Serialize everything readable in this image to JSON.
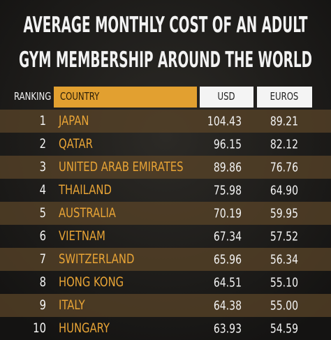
{
  "header": {
    "title_lines": [
      "AVERAGE MONTHLY COST OF AN ADULT",
      "GYM MEMBERSHIP AROUND THE WORLD"
    ]
  },
  "table": {
    "columns": [
      "RANKING",
      "COUNTRY",
      "USD",
      "EUROS"
    ],
    "rows": [
      [
        "1",
        "JAPAN",
        "104.43",
        "89.21"
      ],
      [
        "2",
        "QATAR",
        "96.15",
        "82.12"
      ],
      [
        "3",
        "UNITED ARAB EMIRATES",
        "89.86",
        "76.76"
      ],
      [
        "4",
        "THAILAND",
        "75.98",
        "64.90"
      ],
      [
        "5",
        "AUSTRALIA",
        "70.19",
        "59.95"
      ],
      [
        "6",
        "VIETNAM",
        "67.34",
        "57.52"
      ],
      [
        "7",
        "SWITZERLAND",
        "65.96",
        "56.34"
      ],
      [
        "8",
        "HONG KONG",
        "64.51",
        "55.10"
      ],
      [
        "9",
        "ITALY",
        "64.38",
        "55.00"
      ],
      [
        "10",
        "HUNGARY",
        "63.93",
        "54.59"
      ]
    ]
  }
}
